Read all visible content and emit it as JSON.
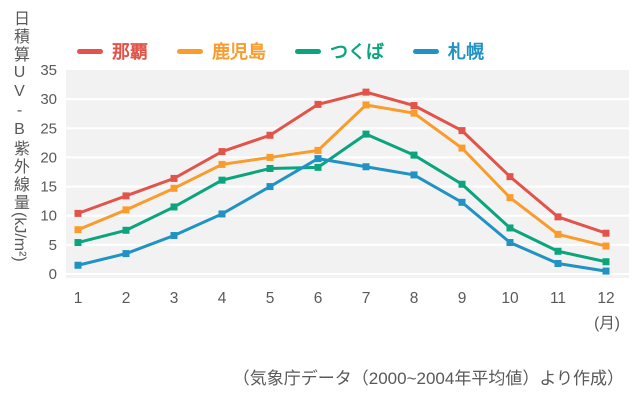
{
  "y_axis": {
    "title_main": "日積算UV-B紫外線量",
    "title_unit": "(kJ/m²)"
  },
  "x_axis": {
    "unit_label": "(月)"
  },
  "caption": "（気象庁データ（2000~2004年平均値）より作成）",
  "plot": {
    "background": "#f2f2f2",
    "gridline_color": "#ffffff",
    "tick_text_color": "#595959"
  },
  "chart_data": {
    "type": "line",
    "x": [
      1,
      2,
      3,
      4,
      5,
      6,
      7,
      8,
      9,
      10,
      11,
      12
    ],
    "series": [
      {
        "id": "naha",
        "name": "那覇",
        "color": "#e2544a",
        "values": [
          10.4,
          13.4,
          16.4,
          21.0,
          23.8,
          29.1,
          31.2,
          28.9,
          24.6,
          16.7,
          9.8,
          7.0
        ]
      },
      {
        "id": "kagoshima",
        "name": "鹿児島",
        "color": "#f99c2c",
        "values": [
          7.6,
          11.0,
          14.7,
          18.8,
          20.0,
          21.2,
          29.0,
          27.6,
          21.6,
          13.1,
          6.8,
          4.8
        ]
      },
      {
        "id": "tsukuba",
        "name": "つくば",
        "color": "#0aa57f",
        "values": [
          5.4,
          7.5,
          11.5,
          16.1,
          18.1,
          18.3,
          24.0,
          20.4,
          15.4,
          7.9,
          3.9,
          2.1
        ]
      },
      {
        "id": "sapporo",
        "name": "札幌",
        "color": "#2093c4",
        "values": [
          1.5,
          3.5,
          6.6,
          10.3,
          15.0,
          19.8,
          18.4,
          17.0,
          12.3,
          5.4,
          1.8,
          0.5
        ]
      }
    ],
    "title": "",
    "xlabel": "(月)",
    "ylabel": "日積算UV-B紫外線量(kJ/m²)",
    "ylim": [
      0,
      35
    ],
    "ytick_step": 5,
    "grid": true,
    "legend_position": "top"
  }
}
